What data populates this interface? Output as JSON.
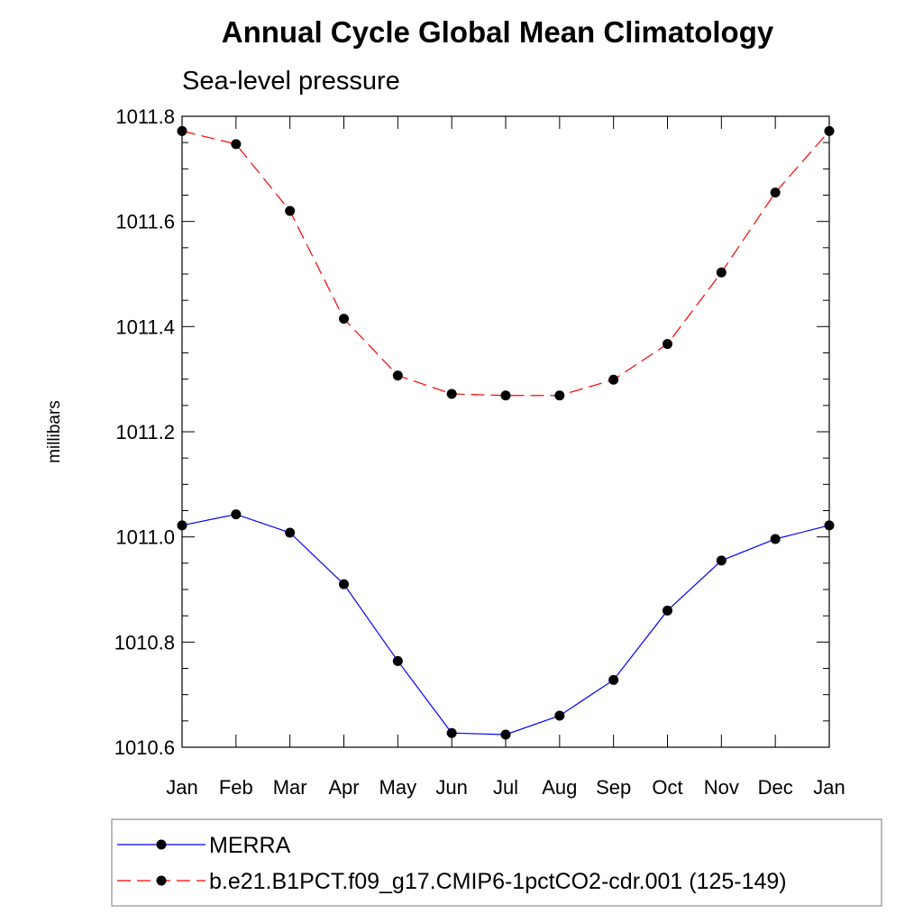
{
  "chart_data": {
    "type": "line",
    "title": "Annual Cycle Global Mean Climatology",
    "subtitle": "Sea-level pressure",
    "xlabel": "",
    "ylabel": "millibars",
    "categories": [
      "Jan",
      "Feb",
      "Mar",
      "Apr",
      "May",
      "Jun",
      "Jul",
      "Aug",
      "Sep",
      "Oct",
      "Nov",
      "Dec",
      "Jan"
    ],
    "ylim": [
      1010.6,
      1011.8
    ],
    "yticks": [
      "1010.6",
      "1010.8",
      "1011.0",
      "1011.2",
      "1011.4",
      "1011.6",
      "1011.8"
    ],
    "grid": false,
    "legend_position": "bottom",
    "series": [
      {
        "name": "MERRA",
        "color": "#0000ff",
        "line_style": "solid",
        "marker": "filled-circle",
        "values": [
          1011.022,
          1011.043,
          1011.008,
          1010.91,
          1010.764,
          1010.627,
          1010.624,
          1010.66,
          1010.728,
          1010.86,
          1010.955,
          1010.996,
          1011.022
        ]
      },
      {
        "name": "b.e21.B1PCT.f09_g17.CMIP6-1pctCO2-cdr.001 (125-149)",
        "color": "#ff0000",
        "line_style": "dashed",
        "marker": "filled-circle",
        "values": [
          1011.772,
          1011.747,
          1011.62,
          1011.415,
          1011.307,
          1011.272,
          1011.269,
          1011.269,
          1011.299,
          1011.367,
          1011.503,
          1011.655,
          1011.772
        ]
      }
    ]
  }
}
